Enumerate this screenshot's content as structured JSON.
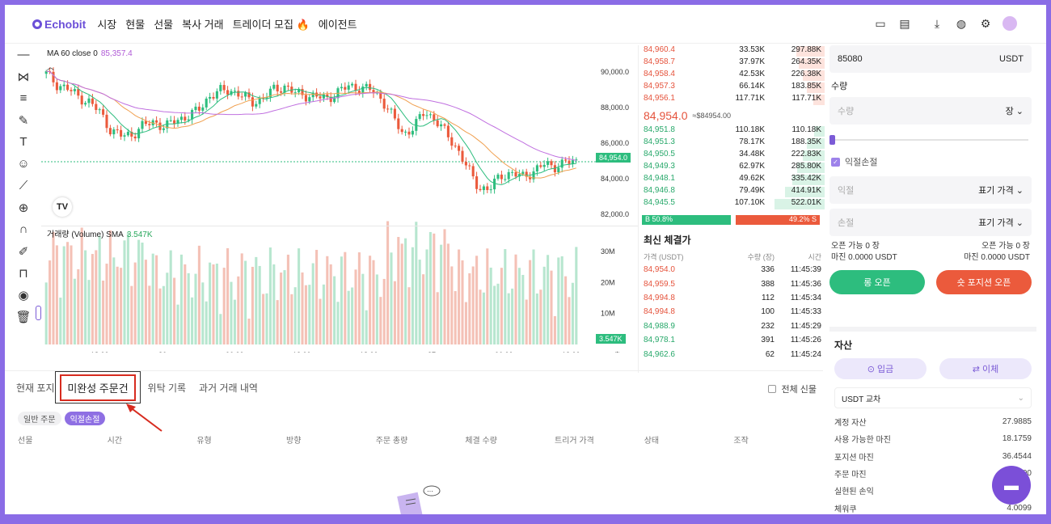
{
  "nav": {
    "logo": "Echobit",
    "menu": [
      "시장",
      "현물",
      "선물",
      "복사 거래",
      "트레이더 모집 🔥",
      "에이전트"
    ]
  },
  "chart": {
    "ma_label": "MA 60 close 0",
    "ma_value": "85,357.4",
    "volume_label": "거래량 (Volume) SMA",
    "volume_value": "3.547K",
    "last_price_tag": "84,954.0",
    "volume_tag": "3.547K",
    "price_ticks": [
      "90,000.0",
      "88,000.0",
      "86,000.0",
      "84,000.0",
      "82,000.0"
    ],
    "volume_ticks": [
      "30M",
      "20M",
      "10M"
    ],
    "time_ticks": [
      "18:00",
      "26",
      "06:00",
      "12:00",
      "18:00",
      "27",
      "06:00",
      "12:00"
    ]
  },
  "chart_data": {
    "type": "candlestick",
    "title": "",
    "y_range": [
      81500,
      91500
    ],
    "indicators": [
      "MA 60 close 0"
    ],
    "last_price": 84954.0,
    "ma60": 85357.4,
    "volume_sma": "3.547K",
    "close_series": [
      89900,
      89300,
      89050,
      88600,
      88300,
      87700,
      86700,
      86400,
      86500,
      87000,
      87200,
      86900,
      87300,
      87500,
      87800,
      88600,
      88900,
      89000,
      88700,
      88300,
      88500,
      89000,
      89200,
      88800,
      88700,
      88600,
      88500,
      88900,
      89200,
      89100,
      89000,
      88500,
      87500,
      86500,
      86900,
      87800,
      87300,
      86500,
      85700,
      84500,
      83500,
      83400,
      84200,
      84300,
      84100,
      84400,
      84800,
      84700,
      84900,
      84954
    ]
  },
  "orderbook": {
    "asks": [
      {
        "price": "84,960.4",
        "qty": "33.53K",
        "total": "297.88K",
        "depth": 0.57
      },
      {
        "price": "84,958.7",
        "qty": "37.97K",
        "total": "264.35K",
        "depth": 0.51
      },
      {
        "price": "84,958.4",
        "qty": "42.53K",
        "total": "226.38K",
        "depth": 0.43
      },
      {
        "price": "84,957.3",
        "qty": "66.14K",
        "total": "183.85K",
        "depth": 0.35
      },
      {
        "price": "84,956.1",
        "qty": "117.71K",
        "total": "117.71K",
        "depth": 0.23
      }
    ],
    "mid_price": "84,954.0",
    "mid_fiat": "≈$84954.00",
    "bids": [
      {
        "price": "84,951.8",
        "qty": "110.18K",
        "total": "110.18K",
        "depth": 0.21
      },
      {
        "price": "84,951.3",
        "qty": "78.17K",
        "total": "188.35K",
        "depth": 0.36
      },
      {
        "price": "84,950.5",
        "qty": "34.48K",
        "total": "222.83K",
        "depth": 0.43
      },
      {
        "price": "84,949.3",
        "qty": "62.97K",
        "total": "285.80K",
        "depth": 0.55
      },
      {
        "price": "84,948.1",
        "qty": "49.62K",
        "total": "335.42K",
        "depth": 0.64
      },
      {
        "price": "84,946.8",
        "qty": "79.49K",
        "total": "414.91K",
        "depth": 0.79
      },
      {
        "price": "84,945.5",
        "qty": "107.10K",
        "total": "522.01K",
        "depth": 1.0
      }
    ],
    "buy_ratio": "B 50.8%",
    "sell_ratio": "49.2% S"
  },
  "trades": {
    "title": "최신 체결가",
    "headers": [
      "가격 (USDT)",
      "수량 (장)",
      "시간"
    ],
    "rows": [
      {
        "price": "84,954.0",
        "qty": "336",
        "time": "11:45:39",
        "side": "sell"
      },
      {
        "price": "84,959.5",
        "qty": "388",
        "time": "11:45:36",
        "side": "sell"
      },
      {
        "price": "84,994.8",
        "qty": "112",
        "time": "11:45:34",
        "side": "sell"
      },
      {
        "price": "84,994.8",
        "qty": "100",
        "time": "11:45:33",
        "side": "sell"
      },
      {
        "price": "84,988.9",
        "qty": "232",
        "time": "11:45:29",
        "side": "buy"
      },
      {
        "price": "84,978.1",
        "qty": "391",
        "time": "11:45:26",
        "side": "buy"
      },
      {
        "price": "84,962.6",
        "qty": "62",
        "time": "11:45:24",
        "side": "buy"
      }
    ]
  },
  "order_form": {
    "price_value": "85080",
    "price_unit": "USDT",
    "qty_label": "수량",
    "qty_placeholder": "수량",
    "qty_unit": "장",
    "tpsl_label": "익절손절",
    "tp_placeholder": "익절",
    "tp_type": "표기 가격",
    "sl_placeholder": "손절",
    "sl_type": "표기 가격",
    "open_avail_left": "오픈 가능 0 장",
    "open_avail_right": "오픈 가능 0 장",
    "margin_left": "마진 0.0000 USDT",
    "margin_right": "마진 0.0000 USDT",
    "long_btn": "롱 오픈",
    "short_btn": "숏 포지션 오픈"
  },
  "assets": {
    "title": "자산",
    "deposit_btn": "입금",
    "transfer_btn": "이체",
    "currency": "USDT 교차",
    "rows": [
      {
        "label": "계정 자산",
        "value": "27.9885"
      },
      {
        "label": "사용 가능한 마진",
        "value": "18.1759"
      },
      {
        "label": "포지션 마진",
        "value": "36.4544"
      },
      {
        "label": "주문 마진",
        "value": "0.0000"
      },
      {
        "label": "실현된 손익",
        "value": ""
      },
      {
        "label": "체워쿠",
        "value": "4.0099"
      }
    ]
  },
  "bottom": {
    "tabs": [
      "현재 포지션",
      "미완성 주문건",
      "위탁 기록",
      "과거 거래 내역"
    ],
    "highlighted_tab": "미완성 주문건",
    "show_all": "전체 신물",
    "pills": [
      "일반 주문",
      "익절손절"
    ],
    "columns": [
      "선물",
      "시간",
      "유형",
      "방향",
      "주문 총량",
      "체결 수량",
      "트리거 가격",
      "상태",
      "조작"
    ]
  }
}
